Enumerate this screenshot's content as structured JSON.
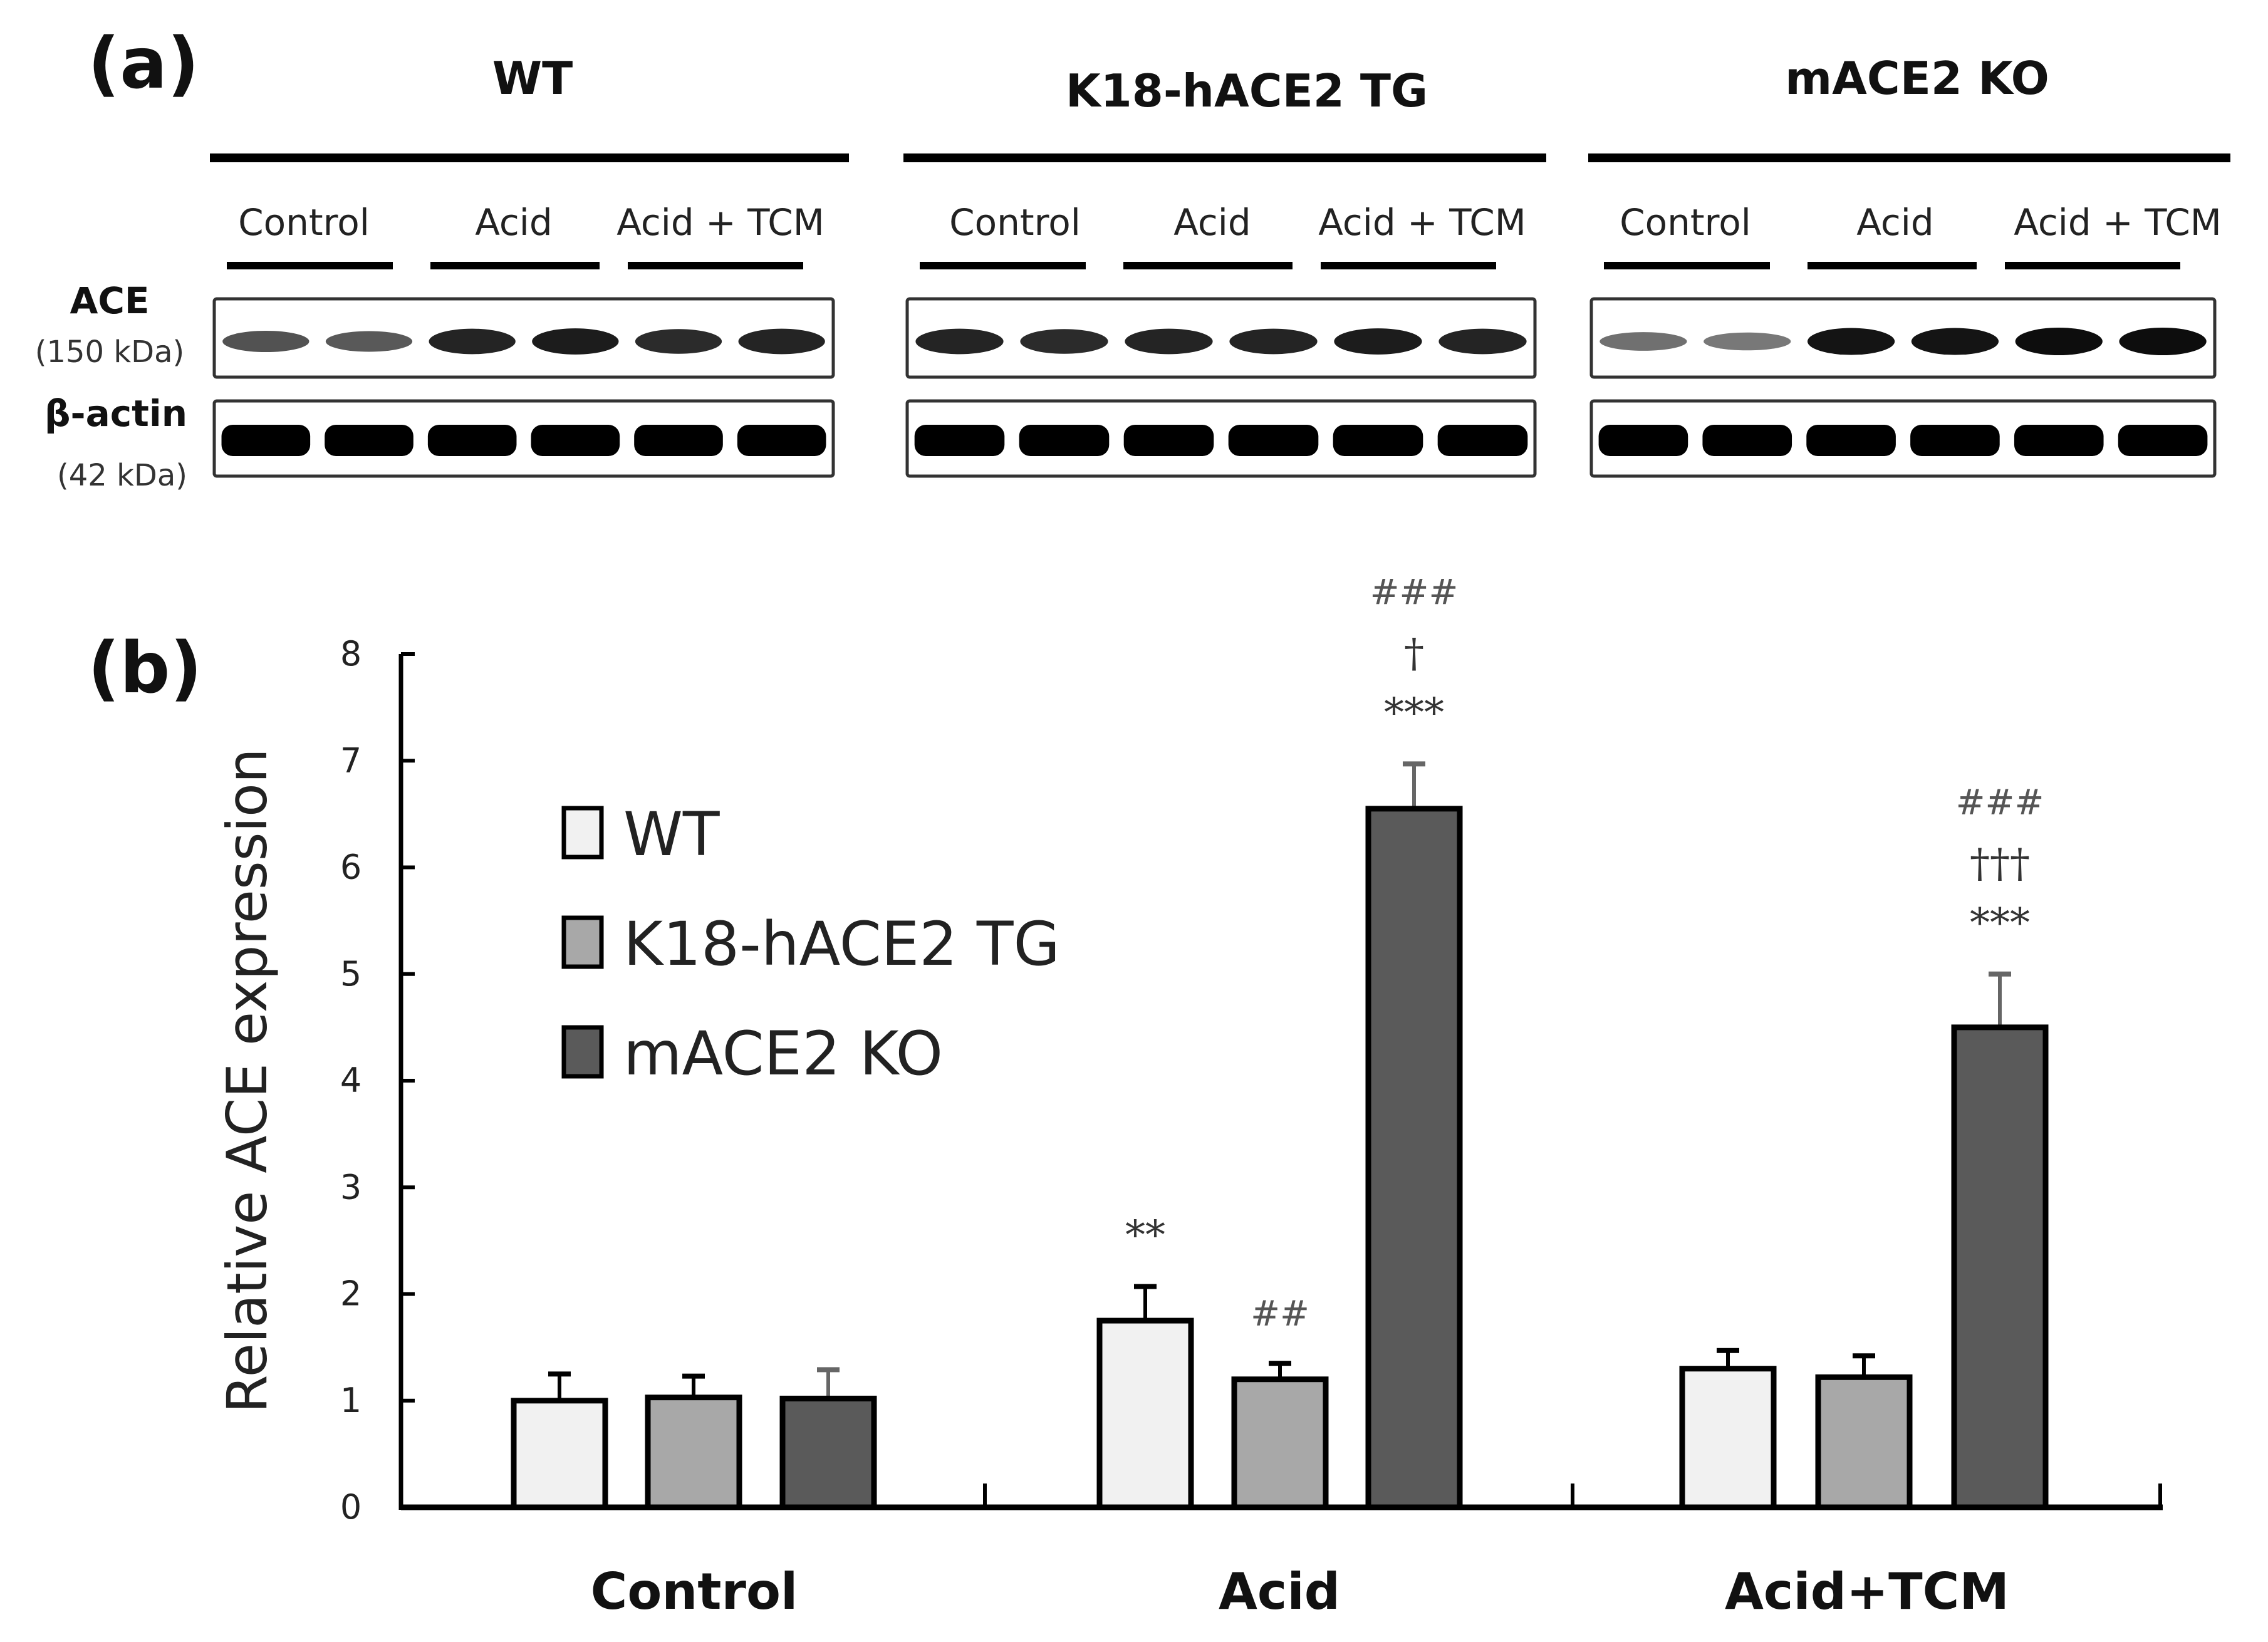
{
  "panel_a": {
    "label": "(a)",
    "strains": [
      {
        "name": "WT",
        "conditions": [
          "Control",
          "Acid",
          "Acid + TCM"
        ]
      },
      {
        "name": "K18-hACE2 TG",
        "conditions": [
          "Control",
          "Acid",
          "Acid + TCM"
        ]
      },
      {
        "name": "mACE2 KO",
        "conditions": [
          "Control",
          "Acid",
          "Acid + TCM"
        ]
      }
    ],
    "rows": [
      {
        "protein": "ACE",
        "size": "(150 kDa)"
      },
      {
        "protein": "β-actin",
        "size": "(42 kDa)"
      }
    ]
  },
  "panel_b": {
    "label": "(b)"
  },
  "colors": {
    "WT": "#f1f1f1",
    "K18-hACE2 TG": "#a8a8a8",
    "mACE2 KO": "#5a5a5a",
    "axis": "#000000"
  },
  "chart_data": {
    "type": "bar",
    "title": "",
    "xlabel": "",
    "ylabel": "Relative ACE expression",
    "ylim": [
      0,
      8
    ],
    "yticks": [
      0,
      1,
      2,
      3,
      4,
      5,
      6,
      7,
      8
    ],
    "grid": false,
    "legend_position": "upper-left (inside)",
    "categories": [
      "Control",
      "Acid",
      "Acid+TCM"
    ],
    "series": [
      {
        "name": "WT",
        "values": [
          1.0,
          1.75,
          1.3
        ],
        "errors": [
          0.25,
          0.32,
          0.17
        ]
      },
      {
        "name": "K18-hACE2 TG",
        "values": [
          1.03,
          1.2,
          1.22
        ],
        "errors": [
          0.2,
          0.15,
          0.2
        ]
      },
      {
        "name": "mACE2 KO",
        "values": [
          1.02,
          6.55,
          4.5
        ],
        "errors": [
          0.27,
          0.42,
          0.5
        ]
      }
    ],
    "annotations": [
      {
        "category": "Acid",
        "series": "WT",
        "labels": [
          "**"
        ]
      },
      {
        "category": "Acid",
        "series": "K18-hACE2 TG",
        "labels": [
          "##"
        ]
      },
      {
        "category": "Acid",
        "series": "mACE2 KO",
        "labels": [
          "***",
          "†",
          "###"
        ]
      },
      {
        "category": "Acid+TCM",
        "series": "mACE2 KO",
        "labels": [
          "***",
          "†††",
          "###"
        ]
      }
    ]
  }
}
